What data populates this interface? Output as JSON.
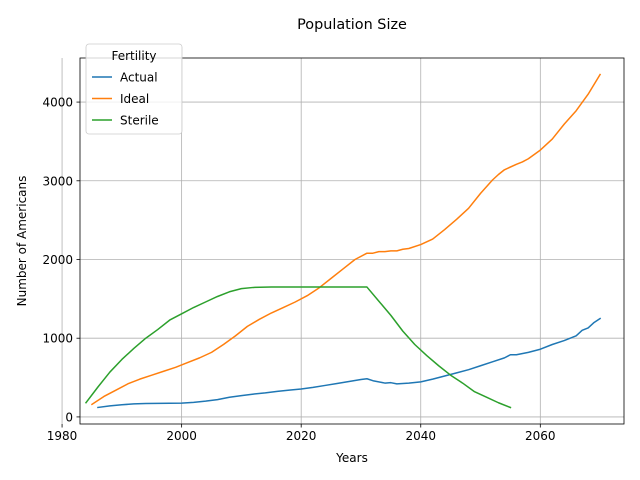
{
  "chart_data": {
    "type": "line",
    "title": "Population Size",
    "xlabel": "Years",
    "ylabel": "Number of Americans",
    "xlim": [
      1983,
      2074
    ],
    "ylim": [
      -90,
      4560
    ],
    "xticks": [
      1980,
      2000,
      2020,
      2040,
      2060
    ],
    "yticks": [
      0,
      1000,
      2000,
      3000,
      4000
    ],
    "grid": true,
    "legend": {
      "title": "Fertility",
      "placement": "top-left"
    },
    "series": [
      {
        "name": "Actual",
        "color": "#1f77b4",
        "x": [
          1986,
          1988,
          1990,
          1992,
          1994,
          1996,
          1998,
          2000,
          2002,
          2004,
          2006,
          2008,
          2010,
          2012,
          2014,
          2016,
          2018,
          2020,
          2022,
          2024,
          2026,
          2028,
          2030,
          2031,
          2032,
          2034,
          2035,
          2036,
          2038,
          2040,
          2042,
          2044,
          2046,
          2048,
          2050,
          2052,
          2054,
          2055,
          2056,
          2058,
          2060,
          2062,
          2064,
          2065,
          2066,
          2067,
          2068,
          2069,
          2070
        ],
        "y": [
          120,
          140,
          155,
          165,
          170,
          172,
          173,
          175,
          185,
          200,
          220,
          250,
          270,
          290,
          305,
          325,
          340,
          355,
          375,
          400,
          425,
          450,
          475,
          485,
          460,
          430,
          435,
          420,
          430,
          445,
          480,
          520,
          560,
          600,
          650,
          700,
          750,
          790,
          790,
          820,
          860,
          920,
          970,
          1000,
          1030,
          1100,
          1130,
          1200,
          1250
        ]
      },
      {
        "name": "Ideal",
        "color": "#ff7f0e",
        "x": [
          1985,
          1987,
          1989,
          1991,
          1993,
          1995,
          1997,
          1999,
          2001,
          2003,
          2005,
          2007,
          2009,
          2011,
          2013,
          2015,
          2017,
          2019,
          2021,
          2023,
          2025,
          2027,
          2029,
          2031,
          2032,
          2033,
          2034,
          2035,
          2036,
          2037,
          2038,
          2040,
          2042,
          2044,
          2046,
          2048,
          2050,
          2052,
          2053,
          2054,
          2056,
          2057,
          2058,
          2060,
          2062,
          2064,
          2066,
          2068,
          2070
        ],
        "y": [
          160,
          260,
          340,
          420,
          480,
          530,
          580,
          630,
          690,
          750,
          820,
          920,
          1030,
          1150,
          1240,
          1320,
          1390,
          1460,
          1540,
          1640,
          1760,
          1880,
          2000,
          2080,
          2080,
          2100,
          2100,
          2110,
          2110,
          2130,
          2140,
          2190,
          2260,
          2380,
          2510,
          2650,
          2840,
          3010,
          3080,
          3140,
          3210,
          3240,
          3280,
          3390,
          3530,
          3720,
          3890,
          4100,
          4350
        ]
      },
      {
        "name": "Sterile",
        "color": "#2ca02c",
        "x": [
          1984,
          1986,
          1988,
          1990,
          1992,
          1994,
          1996,
          1998,
          2000,
          2002,
          2004,
          2006,
          2008,
          2010,
          2012,
          2015,
          2020,
          2025,
          2031,
          2033,
          2035,
          2037,
          2039,
          2041,
          2043,
          2045,
          2047,
          2049,
          2051,
          2053,
          2055
        ],
        "y": [
          180,
          380,
          570,
          730,
          870,
          1000,
          1110,
          1230,
          1310,
          1390,
          1460,
          1530,
          1590,
          1630,
          1645,
          1650,
          1650,
          1650,
          1650,
          1470,
          1290,
          1090,
          920,
          780,
          650,
          530,
          430,
          320,
          250,
          180,
          120
        ]
      }
    ]
  }
}
